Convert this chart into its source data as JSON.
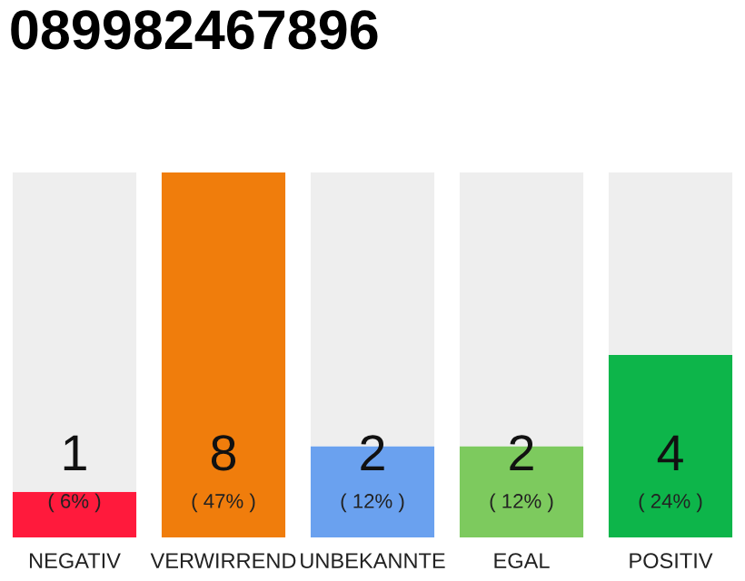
{
  "chart_data": {
    "type": "bar",
    "title": "089982467896",
    "stacked": true,
    "categories": [
      "NEGATIV",
      "VERWIRREND",
      "UNBEKANNTE",
      "EGAL",
      "POSITIV"
    ],
    "series": [
      {
        "colors": [
          "#ff1a3c",
          "#f07d0c",
          "#6aa1ef",
          "#7dca5e",
          "#0db54a"
        ],
        "values": [
          1,
          8,
          2,
          2,
          4
        ],
        "value_labels": [
          "1",
          "8",
          "2",
          "2",
          "4"
        ]
      },
      {
        "color": "#eeeeee",
        "values": [
          7,
          0,
          6,
          6,
          4
        ]
      }
    ],
    "annotations": [
      "( 6% )",
      "( 47% )",
      "( 12% )",
      "( 12% )",
      "( 24% )"
    ],
    "grid": false,
    "legend": false
  }
}
